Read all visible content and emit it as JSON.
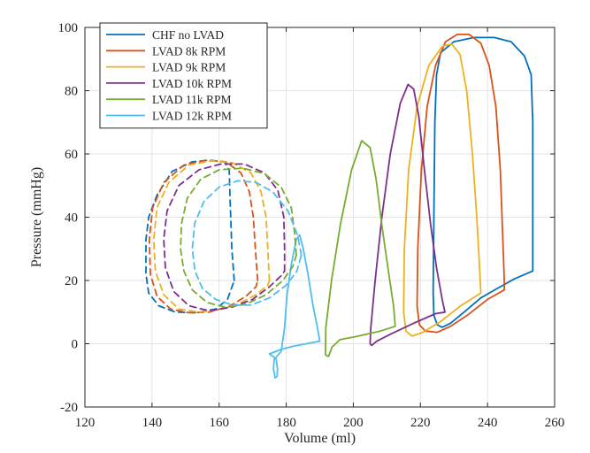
{
  "chart_data": {
    "type": "line",
    "title": "",
    "xlabel": "Volume (ml)",
    "ylabel": "Pressure (mmHg)",
    "xlim": [
      120,
      260
    ],
    "ylim": [
      -20,
      100
    ],
    "xticks": [
      "120",
      "140",
      "160",
      "180",
      "200",
      "220",
      "240",
      "260"
    ],
    "yticks": [
      "-20",
      "0",
      "20",
      "40",
      "60",
      "80",
      "100"
    ],
    "grid": true,
    "legend_position": "top-left",
    "series": [
      {
        "name": "CHF no LVAD",
        "color": "#0072BD",
        "style": "solid",
        "points": [
          [
            253.5,
            23
          ],
          [
            248,
            20.5
          ],
          [
            243,
            17.5
          ],
          [
            238,
            14.5
          ],
          [
            233,
            10
          ],
          [
            229,
            6.5
          ],
          [
            226.5,
            5.2
          ],
          [
            225,
            6
          ],
          [
            224,
            9
          ],
          [
            223.8,
            16
          ],
          [
            224,
            40
          ],
          [
            224.3,
            70
          ],
          [
            224.8,
            85
          ],
          [
            226,
            92
          ],
          [
            230,
            95.5
          ],
          [
            236,
            96.8
          ],
          [
            242,
            96.8
          ],
          [
            247,
            95.5
          ],
          [
            251,
            91
          ],
          [
            253,
            85
          ],
          [
            253.5,
            70
          ],
          [
            253.5,
            40
          ],
          [
            253.5,
            23
          ]
        ]
      },
      {
        "name": "LVAD 8k RPM",
        "color": "#D95319",
        "style": "solid",
        "points": [
          [
            245,
            17
          ],
          [
            240,
            14
          ],
          [
            234,
            9
          ],
          [
            229,
            5.5
          ],
          [
            225,
            3.6
          ],
          [
            221.5,
            4
          ],
          [
            219.7,
            6
          ],
          [
            219,
            12
          ],
          [
            219.2,
            30
          ],
          [
            220.3,
            55
          ],
          [
            222,
            75
          ],
          [
            224.5,
            88
          ],
          [
            227.5,
            95.5
          ],
          [
            231,
            97.8
          ],
          [
            234.5,
            97.8
          ],
          [
            238,
            95
          ],
          [
            240.5,
            88
          ],
          [
            242.5,
            75
          ],
          [
            243.8,
            55
          ],
          [
            244.5,
            35
          ],
          [
            245,
            20
          ],
          [
            245,
            17
          ]
        ]
      },
      {
        "name": "LVAD 9k RPM",
        "color": "#EDB120",
        "style": "solid",
        "points": [
          [
            238,
            16
          ],
          [
            232,
            12
          ],
          [
            226,
            7
          ],
          [
            220.5,
            3.5
          ],
          [
            217.5,
            2.4
          ],
          [
            215.7,
            4
          ],
          [
            215,
            10
          ],
          [
            215.2,
            30
          ],
          [
            216.5,
            55
          ],
          [
            219,
            75
          ],
          [
            222.5,
            88
          ],
          [
            226.5,
            94
          ],
          [
            229.3,
            94.8
          ],
          [
            231.8,
            91.5
          ],
          [
            233.8,
            80
          ],
          [
            235.5,
            60
          ],
          [
            236.8,
            40
          ],
          [
            237.6,
            25
          ],
          [
            238,
            16
          ]
        ]
      },
      {
        "name": "LVAD 10k RPM",
        "color": "#7E2F8E",
        "style": "solid",
        "points": [
          [
            227.3,
            10
          ],
          [
            224.5,
            9.5
          ],
          [
            218,
            6.5
          ],
          [
            211,
            3
          ],
          [
            207,
            0.8
          ],
          [
            205.5,
            -0.5
          ],
          [
            205,
            0
          ],
          [
            205.2,
            5
          ],
          [
            206.5,
            20
          ],
          [
            208.5,
            40
          ],
          [
            211,
            60
          ],
          [
            214,
            76
          ],
          [
            216.3,
            82
          ],
          [
            218,
            80.5
          ],
          [
            219.5,
            72
          ],
          [
            221.2,
            55
          ],
          [
            223,
            38
          ],
          [
            224.8,
            24
          ],
          [
            226.5,
            14
          ],
          [
            227.3,
            10
          ]
        ]
      },
      {
        "name": "LVAD 11k RPM",
        "color": "#77AC30",
        "style": "solid",
        "points": [
          [
            212.5,
            5.5
          ],
          [
            208,
            4
          ],
          [
            201,
            2.3
          ],
          [
            196,
            1.3
          ],
          [
            193.7,
            -1
          ],
          [
            192.6,
            -4
          ],
          [
            191.7,
            -3.5
          ],
          [
            191.8,
            5
          ],
          [
            193.5,
            20
          ],
          [
            196.2,
            38
          ],
          [
            199.5,
            55
          ],
          [
            202.5,
            64.2
          ],
          [
            205,
            62
          ],
          [
            206.8,
            52
          ],
          [
            208.7,
            36
          ],
          [
            210.6,
            22
          ],
          [
            212,
            12
          ],
          [
            212.5,
            5.5
          ]
        ]
      },
      {
        "name": "LVAD 12k RPM",
        "color": "#4DBEEE",
        "style": "solid",
        "points": [
          [
            190,
            0.8
          ],
          [
            186,
            0
          ],
          [
            182,
            -0.8
          ],
          [
            178.5,
            -1.8
          ],
          [
            176,
            -2.8
          ],
          [
            175,
            -3.2
          ],
          [
            177,
            -4.8
          ],
          [
            177.4,
            -8
          ],
          [
            177.3,
            -10.2
          ],
          [
            176.7,
            -10.8
          ],
          [
            176.2,
            -8
          ],
          [
            176.4,
            -5
          ],
          [
            178.5,
            -2.4
          ],
          [
            179.5,
            5
          ],
          [
            180.2,
            15
          ],
          [
            181.5,
            25
          ],
          [
            183,
            33
          ],
          [
            184,
            34.4
          ],
          [
            185,
            30.5
          ],
          [
            186.5,
            22
          ],
          [
            188,
            12
          ],
          [
            189.5,
            4
          ],
          [
            190,
            0.8
          ]
        ]
      },
      {
        "name": "",
        "color": "#0072BD",
        "style": "dashed",
        "points": [
          [
            164.5,
            20
          ],
          [
            163.8,
            30
          ],
          [
            163.3,
            45
          ],
          [
            163,
            55
          ],
          [
            161.5,
            57.5
          ],
          [
            157,
            58
          ],
          [
            152,
            57.5
          ],
          [
            146,
            54.5
          ],
          [
            141.5,
            47
          ],
          [
            139,
            40
          ],
          [
            138.2,
            33
          ],
          [
            138.2,
            22
          ],
          [
            139,
            16
          ],
          [
            142,
            12
          ],
          [
            147,
            10
          ],
          [
            153,
            9.8
          ],
          [
            159,
            11
          ],
          [
            162.5,
            14
          ],
          [
            163.5,
            17
          ],
          [
            164.5,
            20
          ]
        ]
      },
      {
        "name": "",
        "color": "#D95319",
        "style": "dashed",
        "points": [
          [
            171.5,
            20
          ],
          [
            170.8,
            30
          ],
          [
            170.2,
            40
          ],
          [
            169,
            48
          ],
          [
            166.5,
            54
          ],
          [
            162,
            57.5
          ],
          [
            156,
            58
          ],
          [
            149.5,
            56.5
          ],
          [
            143.5,
            51
          ],
          [
            140.2,
            43
          ],
          [
            139.2,
            33
          ],
          [
            139.5,
            22
          ],
          [
            141.5,
            15
          ],
          [
            145.5,
            11
          ],
          [
            151,
            9.8
          ],
          [
            157,
            10
          ],
          [
            163,
            11.8
          ],
          [
            168,
            15
          ],
          [
            171,
            18
          ],
          [
            171.5,
            20
          ]
        ]
      },
      {
        "name": "",
        "color": "#EDB120",
        "style": "dashed",
        "points": [
          [
            175,
            20
          ],
          [
            174.5,
            30
          ],
          [
            174,
            40
          ],
          [
            172.5,
            48
          ],
          [
            169.5,
            54
          ],
          [
            164,
            57.2
          ],
          [
            157.5,
            57.8
          ],
          [
            151,
            56.5
          ],
          [
            145,
            51
          ],
          [
            141.5,
            43
          ],
          [
            140.5,
            33
          ],
          [
            141,
            23
          ],
          [
            143.5,
            15.5
          ],
          [
            148,
            11
          ],
          [
            154,
            10
          ],
          [
            160,
            10.7
          ],
          [
            166,
            12.7
          ],
          [
            171,
            15.5
          ],
          [
            174.5,
            18.5
          ],
          [
            175,
            20
          ]
        ]
      },
      {
        "name": "",
        "color": "#7E2F8E",
        "style": "dashed",
        "points": [
          [
            179.5,
            23
          ],
          [
            179.5,
            30
          ],
          [
            179.3,
            40
          ],
          [
            177.5,
            48.5
          ],
          [
            173.5,
            54
          ],
          [
            167.5,
            56.8
          ],
          [
            160.5,
            56.8
          ],
          [
            154,
            55
          ],
          [
            148,
            50
          ],
          [
            144.5,
            42
          ],
          [
            143.5,
            33
          ],
          [
            144,
            24
          ],
          [
            146.5,
            16.5
          ],
          [
            151,
            12
          ],
          [
            157,
            10.4
          ],
          [
            164,
            11.6
          ],
          [
            170,
            14
          ],
          [
            175,
            18
          ],
          [
            178.5,
            21.5
          ],
          [
            179.5,
            23
          ]
        ]
      },
      {
        "name": "",
        "color": "#77AC30",
        "style": "dashed",
        "points": [
          [
            183,
            28
          ],
          [
            182.5,
            35
          ],
          [
            181.5,
            43
          ],
          [
            178.5,
            49.5
          ],
          [
            173.5,
            53.8
          ],
          [
            167,
            55.5
          ],
          [
            160,
            55
          ],
          [
            154.5,
            52
          ],
          [
            150.5,
            46
          ],
          [
            148.8,
            38
          ],
          [
            148.5,
            30
          ],
          [
            149.5,
            23
          ],
          [
            152,
            17
          ],
          [
            156.5,
            13
          ],
          [
            162,
            11.5
          ],
          [
            168,
            12.5
          ],
          [
            174,
            15.5
          ],
          [
            179,
            20
          ],
          [
            182,
            24.5
          ],
          [
            183,
            28
          ]
        ]
      },
      {
        "name": "",
        "color": "#4DBEEE",
        "style": "dashed",
        "points": [
          [
            184.5,
            28
          ],
          [
            183.5,
            34
          ],
          [
            180.5,
            42
          ],
          [
            176,
            48
          ],
          [
            171,
            51
          ],
          [
            165.5,
            51.5
          ],
          [
            160,
            49.5
          ],
          [
            155.5,
            45
          ],
          [
            152.7,
            38
          ],
          [
            152,
            30
          ],
          [
            152.8,
            23
          ],
          [
            155,
            17.5
          ],
          [
            159,
            14
          ],
          [
            164,
            12.2
          ],
          [
            169.5,
            12.2
          ],
          [
            175,
            14.5
          ],
          [
            180,
            18.5
          ],
          [
            183.2,
            23
          ],
          [
            184.5,
            28
          ]
        ]
      }
    ]
  }
}
